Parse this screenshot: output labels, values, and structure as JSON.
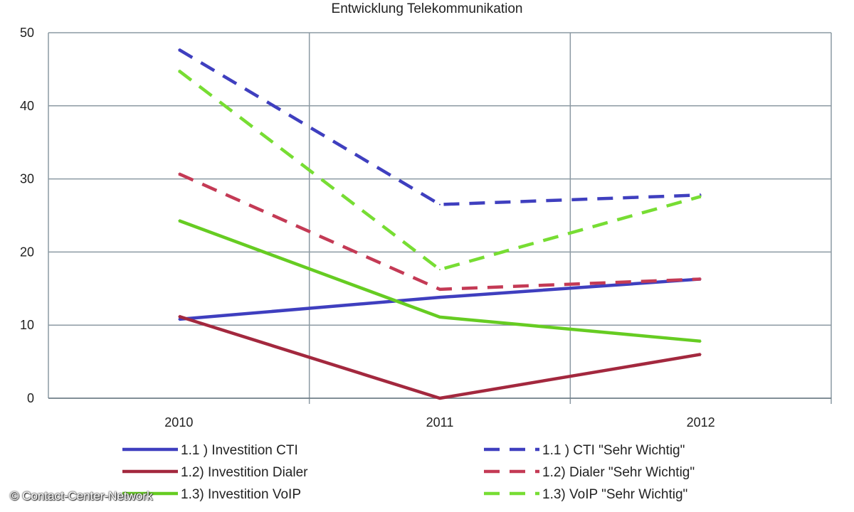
{
  "chart_data": {
    "type": "line",
    "title": "Entwicklung Telekommunikation",
    "categories": [
      "2010",
      "2011",
      "2012"
    ],
    "ylim": [
      0,
      50
    ],
    "yticks": [
      "0",
      "10",
      "20",
      "30",
      "40",
      "50"
    ],
    "grid": true,
    "legend_position": "bottom",
    "series": [
      {
        "name": "1.1 ) Investition CTI",
        "values": [
          10.8,
          13.8,
          16.3
        ],
        "color": "#3f3fbf",
        "dashed": false
      },
      {
        "name": "1.1 ) CTI \"Sehr Wichtig\"",
        "values": [
          47.7,
          26.5,
          27.8
        ],
        "color": "#3f3fbf",
        "dashed": true
      },
      {
        "name": "1.2) Investition Dialer",
        "values": [
          11.2,
          0,
          6
        ],
        "color": "#a3283e",
        "dashed": false
      },
      {
        "name": "1.2) Dialer \"Sehr Wichtig\"",
        "values": [
          30.7,
          14.9,
          16.3
        ],
        "color": "#c43a55",
        "dashed": true
      },
      {
        "name": "1.3) Investition VoIP",
        "values": [
          24.3,
          11.1,
          7.8
        ],
        "color": "#66cc22",
        "dashed": false
      },
      {
        "name": "1.3) VoIP \"Sehr Wichtig\"",
        "values": [
          44.8,
          17.6,
          27.6
        ],
        "color": "#77dd33",
        "dashed": true
      }
    ]
  },
  "watermark": "© Contact-Center-Network"
}
